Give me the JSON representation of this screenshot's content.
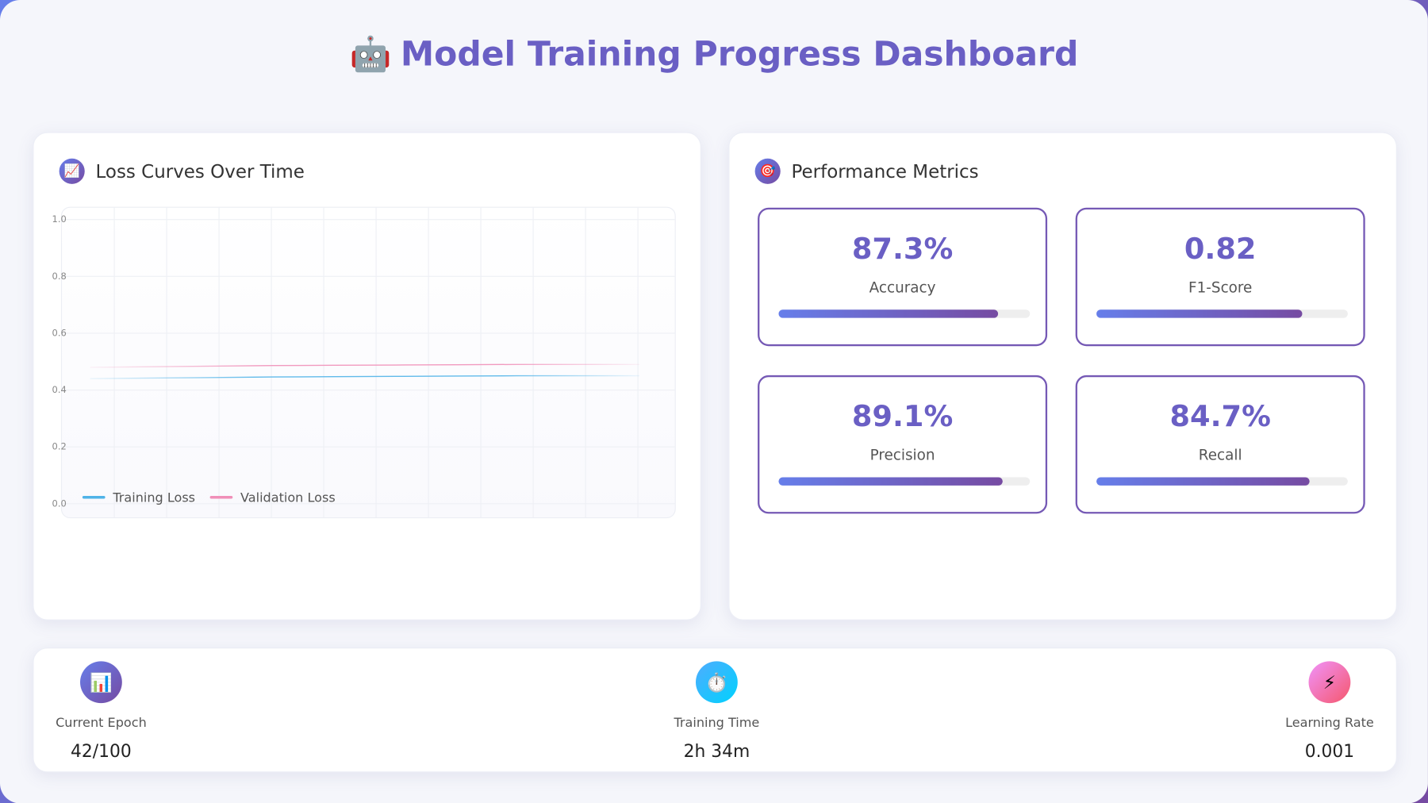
{
  "header": {
    "icon": "🤖",
    "title": "Model Training Progress Dashboard"
  },
  "loss_panel": {
    "icon": "📈",
    "title": "Loss Curves Over Time",
    "chart_data": {
      "type": "line",
      "ylim": [
        0,
        1
      ],
      "yticks": [
        {
          "value": 0,
          "label": "0.0"
        },
        {
          "value": 0.2,
          "label": "0.2"
        },
        {
          "value": 0.4,
          "label": "0.4"
        },
        {
          "value": 0.6,
          "label": "0.6"
        },
        {
          "value": 0.8,
          "label": "0.8"
        },
        {
          "value": 1,
          "label": "1.0"
        }
      ],
      "grid": true,
      "series": [
        {
          "name": "Training Loss",
          "color": "#4fb3e8",
          "values": [
            0.44,
            0.442,
            0.444,
            0.446,
            0.447,
            0.448,
            0.449,
            0.45,
            0.45,
            0.45
          ]
        },
        {
          "name": "Validation Loss",
          "color": "#f08fb8",
          "values": [
            0.48,
            0.482,
            0.484,
            0.486,
            0.487,
            0.488,
            0.489,
            0.49,
            0.49,
            0.49
          ]
        }
      ]
    }
  },
  "metrics_panel": {
    "icon": "🎯",
    "title": "Performance Metrics",
    "metrics": [
      {
        "value_label": "87.3%",
        "label": "Accuracy",
        "progress": 87.3
      },
      {
        "value_label": "0.82",
        "label": "F1-Score",
        "progress": 82
      },
      {
        "value_label": "89.1%",
        "label": "Precision",
        "progress": 89.1
      },
      {
        "value_label": "84.7%",
        "label": "Recall",
        "progress": 84.7
      }
    ]
  },
  "stats": [
    {
      "icon": "📊",
      "label": "Current Epoch",
      "value": "42/100"
    },
    {
      "icon": "⏱️",
      "label": "Training Time",
      "value": "2h 34m"
    },
    {
      "icon": "⚡",
      "label": "Learning Rate",
      "value": "0.001"
    }
  ]
}
